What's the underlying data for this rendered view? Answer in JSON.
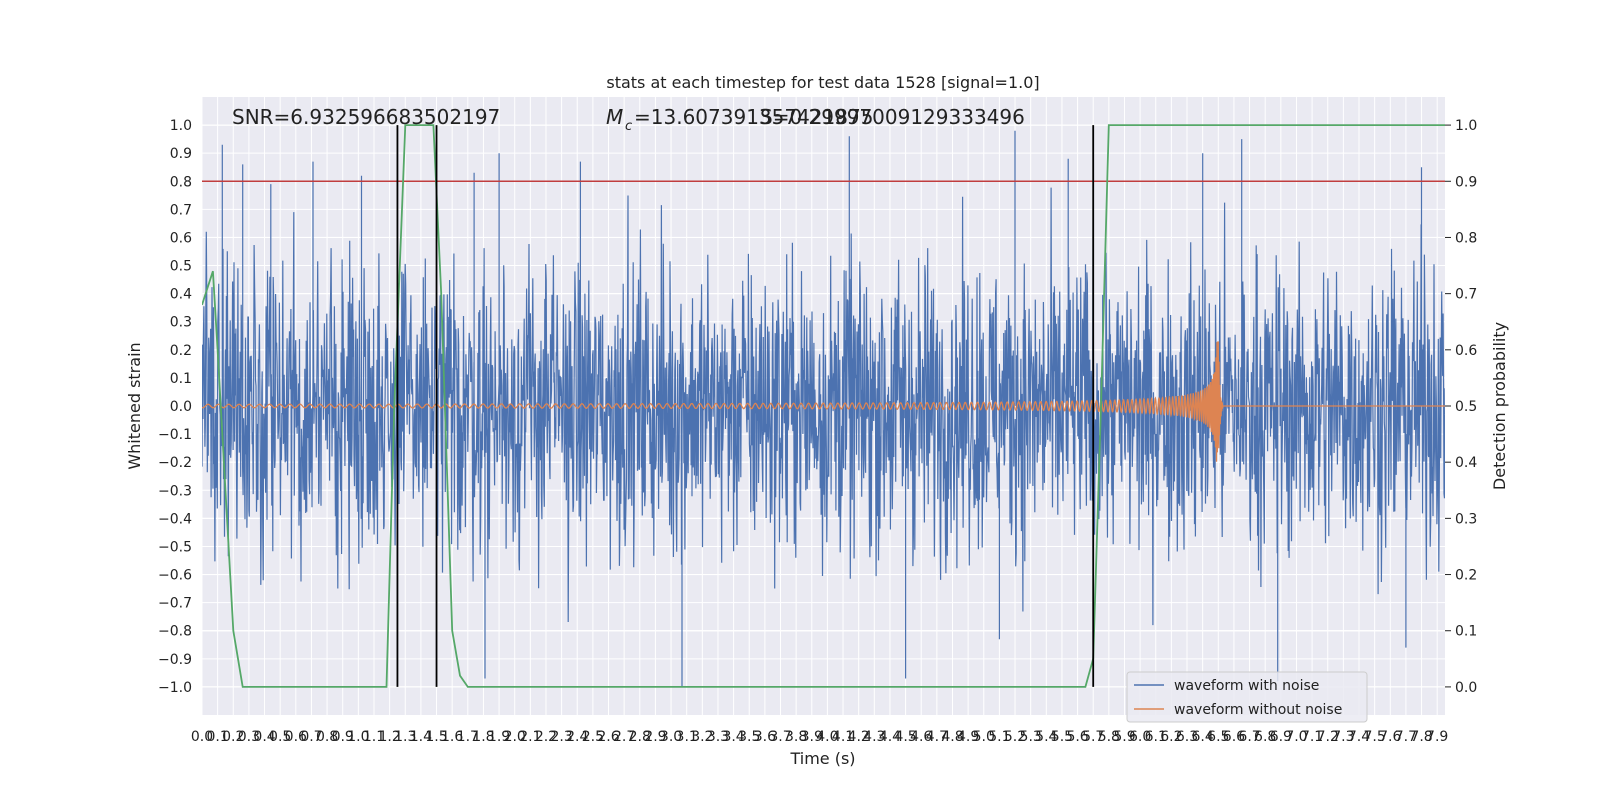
{
  "chart_data": {
    "type": "line",
    "title": "stats at each timestep for test data 1528 [signal=1.0]",
    "xlabel": "Time (s)",
    "ylabel": "Whitened strain",
    "y2label": "Detection probability",
    "xlim": [
      0.0,
      7.95
    ],
    "ylim": [
      -1.1,
      1.1
    ],
    "y2lim": [
      -0.05,
      1.05
    ],
    "xticks": [
      "0.0",
      "0.1",
      "0.2",
      "0.3",
      "0.4",
      "0.5",
      "0.6",
      "0.7",
      "0.8",
      "0.9",
      "1.0",
      "1.1",
      "1.2",
      "1.3",
      "1.4",
      "1.5",
      "1.6",
      "1.7",
      "1.8",
      "1.9",
      "2.0",
      "2.1",
      "2.2",
      "2.3",
      "2.4",
      "2.5",
      "2.6",
      "2.7",
      "2.8",
      "2.9",
      "3.0",
      "3.1",
      "3.2",
      "3.3",
      "3.4",
      "3.5",
      "3.6",
      "3.7",
      "3.8",
      "3.9",
      "4.0",
      "4.1",
      "4.2",
      "4.3",
      "4.4",
      "4.5",
      "4.6",
      "4.7",
      "4.8",
      "4.9",
      "5.0",
      "5.1",
      "5.2",
      "5.3",
      "5.4",
      "5.5",
      "5.6",
      "5.7",
      "5.8",
      "5.9",
      "6.0",
      "6.1",
      "6.2",
      "6.3",
      "6.4",
      "6.5",
      "6.6",
      "6.7",
      "6.8",
      "6.9",
      "7.0",
      "7.1",
      "7.2",
      "7.3",
      "7.4",
      "7.5",
      "7.6",
      "7.7",
      "7.8",
      "7.9"
    ],
    "yticks": [
      "1.0",
      "0.9",
      "0.8",
      "0.7",
      "0.6",
      "0.5",
      "0.4",
      "0.3",
      "0.2",
      "0.1",
      "0.0",
      "-0.1",
      "-0.2",
      "-0.3",
      "-0.4",
      "-0.5",
      "-0.6",
      "-0.7",
      "-0.8",
      "-0.9",
      "-1.0"
    ],
    "y2ticks": [
      "1.0",
      "0.9",
      "0.8",
      "0.7",
      "0.6",
      "0.5",
      "0.4",
      "0.3",
      "0.2",
      "0.1",
      "0.0"
    ],
    "annotations": {
      "snr": "SNR=6.932596683502197",
      "mc": "=13.607391357421875",
      "mc_symbol": "M",
      "mc_sub": "c",
      "overlap": "S=0.29997009129333496"
    },
    "threshold": {
      "y2": 0.9,
      "color": "#c03d3e"
    },
    "detections": [
      1.25,
      1.5,
      5.7
    ],
    "series": [
      {
        "name": "waveform with noise",
        "color": "#4c72b0",
        "amplitude": 0.55,
        "spikes": [
          [
            0.13,
            0.93
          ],
          [
            0.26,
            0.86
          ],
          [
            0.44,
            0.79
          ],
          [
            0.71,
            0.87
          ],
          [
            1.02,
            0.82
          ],
          [
            1.74,
            0.83
          ],
          [
            1.9,
            0.9
          ],
          [
            2.42,
            0.87
          ],
          [
            3.07,
            -1.0
          ],
          [
            4.14,
            0.96
          ],
          [
            4.5,
            -0.97
          ],
          [
            5.2,
            0.98
          ],
          [
            6.4,
            0.9
          ],
          [
            6.65,
            0.95
          ],
          [
            6.88,
            -0.98
          ],
          [
            7.8,
            0.85
          ],
          [
            7.7,
            -0.86
          ],
          [
            1.81,
            -0.97
          ],
          [
            5.1,
            -0.83
          ],
          [
            5.54,
            0.88
          ]
        ]
      },
      {
        "name": "waveform without noise",
        "color": "#dd8452",
        "merger_time": 6.5,
        "peak": 0.3
      },
      {
        "name": "detection probability",
        "color": "#55a868",
        "points": [
          [
            0.0,
            0.68
          ],
          [
            0.07,
            0.74
          ],
          [
            0.1,
            0.6
          ],
          [
            0.2,
            0.1
          ],
          [
            0.26,
            0.0
          ],
          [
            1.18,
            0.0
          ],
          [
            1.23,
            0.5
          ],
          [
            1.3,
            1.0
          ],
          [
            1.48,
            1.0
          ],
          [
            1.53,
            0.7
          ],
          [
            1.6,
            0.1
          ],
          [
            1.65,
            0.02
          ],
          [
            1.7,
            0.0
          ],
          [
            5.65,
            0.0
          ],
          [
            5.7,
            0.05
          ],
          [
            5.75,
            0.5
          ],
          [
            5.8,
            1.0
          ],
          [
            7.95,
            1.0
          ]
        ]
      }
    ],
    "legend": {
      "placement": "lower-right"
    }
  }
}
